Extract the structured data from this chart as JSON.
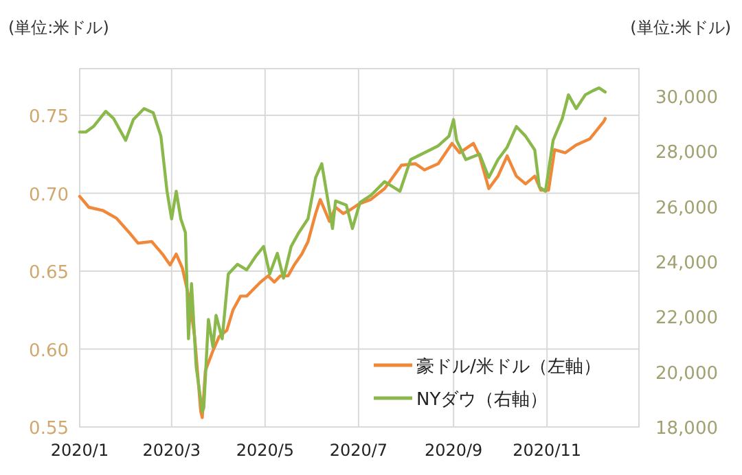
{
  "chart_data": {
    "type": "line",
    "ylabel": "(単位:米ドル)",
    "y2label": "(単位:米ドル)",
    "xlim": [
      "2020-01-01",
      "2020-12-31"
    ],
    "xticks": [
      {
        "value": "2020-01-01",
        "label": "2020/1"
      },
      {
        "value": "2020-03-01",
        "label": "2020/3"
      },
      {
        "value": "2020-05-01",
        "label": "2020/5"
      },
      {
        "value": "2020-07-01",
        "label": "2020/7"
      },
      {
        "value": "2020-09-01",
        "label": "2020/9"
      },
      {
        "value": "2020-11-01",
        "label": "2020/11"
      }
    ],
    "ylim": [
      0.55,
      0.78
    ],
    "yticks": [
      {
        "value": 0.55,
        "label": "0.55"
      },
      {
        "value": 0.6,
        "label": "0.60"
      },
      {
        "value": 0.65,
        "label": "0.65"
      },
      {
        "value": 0.7,
        "label": "0.70"
      },
      {
        "value": 0.75,
        "label": "0.75"
      }
    ],
    "y2lim": [
      18000,
      31000
    ],
    "y2ticks": [
      {
        "value": 18000,
        "label": "18,000"
      },
      {
        "value": 20000,
        "label": "20,000"
      },
      {
        "value": 22000,
        "label": "22,000"
      },
      {
        "value": 24000,
        "label": "24,000"
      },
      {
        "value": 26000,
        "label": "26,000"
      },
      {
        "value": 28000,
        "label": "28,000"
      },
      {
        "value": 30000,
        "label": "30,000"
      }
    ],
    "grid": true,
    "legend": "bottom right",
    "marker": "none",
    "line_style": "solid",
    "series": [
      {
        "name": "豪ドル/米ドル（左軸）",
        "color": "#f0883a",
        "x": [
          "2020-01-01",
          "2020-01-07",
          "2020-01-16",
          "2020-01-25",
          "2020-02-03",
          "2020-02-08",
          "2020-02-17",
          "2020-02-24",
          "2020-02-29",
          "2020-03-04",
          "2020-03-08",
          "2020-03-13",
          "2020-03-16",
          "2020-03-20",
          "2020-03-21",
          "2020-03-23",
          "2020-03-28",
          "2020-04-01",
          "2020-04-06",
          "2020-04-10",
          "2020-04-15",
          "2020-04-19",
          "2020-04-24",
          "2020-04-28",
          "2020-05-03",
          "2020-05-07",
          "2020-05-11",
          "2020-05-16",
          "2020-05-20",
          "2020-05-25",
          "2020-05-29",
          "2020-06-03",
          "2020-06-06",
          "2020-06-12",
          "2020-06-16",
          "2020-06-21",
          "2020-06-25",
          "2020-07-01",
          "2020-07-09",
          "2020-07-18",
          "2020-07-29",
          "2020-08-07",
          "2020-08-13",
          "2020-08-22",
          "2020-08-31",
          "2020-09-05",
          "2020-09-14",
          "2020-09-18",
          "2020-09-24",
          "2020-09-30",
          "2020-10-06",
          "2020-10-12",
          "2020-10-18",
          "2020-10-24",
          "2020-10-28",
          "2020-11-02",
          "2020-11-06",
          "2020-11-13",
          "2020-11-20",
          "2020-11-29",
          "2020-12-08",
          "2020-12-09"
        ],
        "values": [
          0.698,
          0.691,
          0.689,
          0.684,
          0.674,
          0.668,
          0.669,
          0.661,
          0.654,
          0.661,
          0.652,
          0.63,
          0.608,
          0.56,
          0.556,
          0.586,
          0.599,
          0.608,
          0.612,
          0.625,
          0.634,
          0.634,
          0.639,
          0.643,
          0.647,
          0.643,
          0.647,
          0.647,
          0.654,
          0.661,
          0.669,
          0.687,
          0.696,
          0.682,
          0.691,
          0.687,
          0.689,
          0.693,
          0.696,
          0.703,
          0.718,
          0.719,
          0.715,
          0.719,
          0.732,
          0.726,
          0.732,
          0.724,
          0.703,
          0.711,
          0.724,
          0.711,
          0.706,
          0.711,
          0.702,
          0.702,
          0.728,
          0.726,
          0.731,
          0.735,
          0.746,
          0.748
        ]
      },
      {
        "name": "NYダウ（右軸）",
        "color": "#8ab84a",
        "axis": "y2",
        "x": [
          "2020-01-01",
          "2020-01-05",
          "2020-01-10",
          "2020-01-18",
          "2020-01-23",
          "2020-01-28",
          "2020-01-31",
          "2020-02-05",
          "2020-02-12",
          "2020-02-18",
          "2020-02-23",
          "2020-02-27",
          "2020-03-01",
          "2020-03-04",
          "2020-03-07",
          "2020-03-10",
          "2020-03-12",
          "2020-03-14",
          "2020-03-17",
          "2020-03-21",
          "2020-03-22",
          "2020-03-25",
          "2020-03-28",
          "2020-03-30",
          "2020-04-03",
          "2020-04-07",
          "2020-04-13",
          "2020-04-19",
          "2020-04-25",
          "2020-04-30",
          "2020-05-04",
          "2020-05-09",
          "2020-05-13",
          "2020-05-18",
          "2020-05-23",
          "2020-05-29",
          "2020-06-03",
          "2020-06-07",
          "2020-06-10",
          "2020-06-14",
          "2020-06-16",
          "2020-06-23",
          "2020-06-27",
          "2020-07-02",
          "2020-07-09",
          "2020-07-18",
          "2020-07-28",
          "2020-08-04",
          "2020-08-13",
          "2020-08-22",
          "2020-08-29",
          "2020-09-01",
          "2020-09-03",
          "2020-09-09",
          "2020-09-18",
          "2020-09-24",
          "2020-09-30",
          "2020-10-06",
          "2020-10-12",
          "2020-10-18",
          "2020-10-24",
          "2020-10-27",
          "2020-10-31",
          "2020-11-05",
          "2020-11-11",
          "2020-11-15",
          "2020-11-20",
          "2020-11-26",
          "2020-12-01",
          "2020-12-05",
          "2020-12-09"
        ],
        "values": [
          28700,
          28700,
          28900,
          29450,
          29200,
          28700,
          28400,
          29150,
          29550,
          29400,
          28550,
          26550,
          25550,
          26550,
          25550,
          25050,
          21200,
          23200,
          20200,
          18550,
          18700,
          21900,
          20900,
          22050,
          21200,
          23550,
          23900,
          23700,
          24200,
          24550,
          23550,
          24300,
          23400,
          24550,
          25050,
          25550,
          27050,
          27550,
          26550,
          25200,
          26200,
          26050,
          25200,
          26150,
          26400,
          26900,
          26550,
          27700,
          27950,
          28200,
          28550,
          29150,
          28400,
          27700,
          27900,
          27050,
          27700,
          28150,
          28900,
          28550,
          28050,
          26700,
          26550,
          28400,
          29200,
          30050,
          29550,
          30050,
          30200,
          30300,
          30150
        ]
      }
    ]
  }
}
